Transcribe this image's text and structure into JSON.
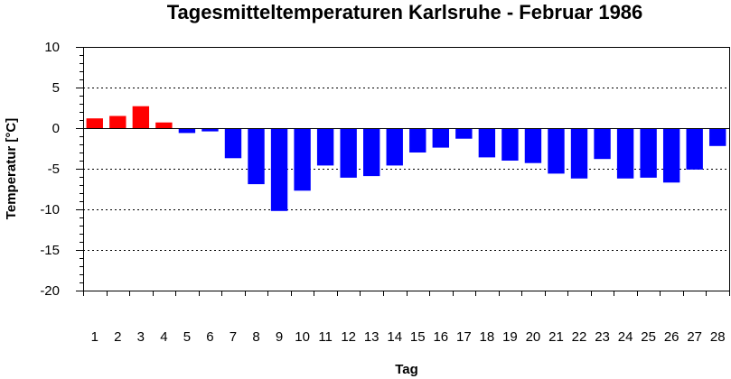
{
  "chart_data": {
    "type": "bar",
    "title": "Tagesmitteltemperaturen Karlsruhe - Februar 1986",
    "xlabel": "Tag",
    "ylabel": "Temperatur [°C]",
    "ylim": [
      -20,
      10
    ],
    "y_major_ticks": [
      10,
      5,
      0,
      -5,
      -10,
      -15,
      -20
    ],
    "y_minor_step": 1,
    "grid": "horizontal dashed at major ticks",
    "categories": [
      "1",
      "2",
      "3",
      "4",
      "5",
      "6",
      "7",
      "8",
      "9",
      "10",
      "11",
      "12",
      "13",
      "14",
      "15",
      "16",
      "17",
      "18",
      "19",
      "20",
      "21",
      "22",
      "23",
      "24",
      "25",
      "26",
      "27",
      "28"
    ],
    "values": [
      1.2,
      1.5,
      2.7,
      0.7,
      -0.6,
      -0.4,
      -3.7,
      -6.9,
      -10.2,
      -7.7,
      -4.6,
      -6.1,
      -5.9,
      -4.6,
      -3.0,
      -2.4,
      -1.3,
      -3.6,
      -4.0,
      -4.3,
      -5.6,
      -6.2,
      -3.8,
      -6.2,
      -6.1,
      -6.7,
      -5.1,
      -2.2
    ],
    "colors": {
      "positive": "#ff0000",
      "negative": "#0000ff",
      "grid": "#000000",
      "axis": "#000000"
    }
  }
}
